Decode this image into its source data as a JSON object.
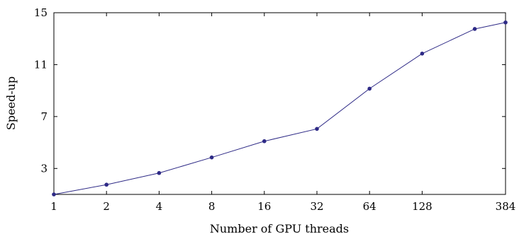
{
  "chart_data": {
    "type": "line",
    "title": "",
    "xlabel": "Number of GPU threads",
    "ylabel": "Speed-up",
    "x_scale": "log2",
    "x_ticks": [
      1,
      2,
      4,
      8,
      16,
      32,
      64,
      128,
      384
    ],
    "x_tick_labels": [
      "1",
      "2",
      "4",
      "8",
      "16",
      "32",
      "64",
      "128",
      "384"
    ],
    "xlim": [
      1,
      384
    ],
    "y_ticks": [
      3,
      7,
      11,
      15
    ],
    "y_tick_labels": [
      "3",
      "7",
      "11",
      "15"
    ],
    "ylim": [
      1,
      15
    ],
    "grid": false,
    "legend": "none",
    "series": [
      {
        "color": "#2e2a86",
        "x": [
          1,
          2,
          4,
          8,
          16,
          32,
          64,
          128,
          256,
          384
        ],
        "y": [
          1.0,
          1.75,
          2.65,
          3.85,
          5.1,
          6.05,
          9.15,
          11.85,
          13.75,
          14.25
        ]
      }
    ]
  }
}
